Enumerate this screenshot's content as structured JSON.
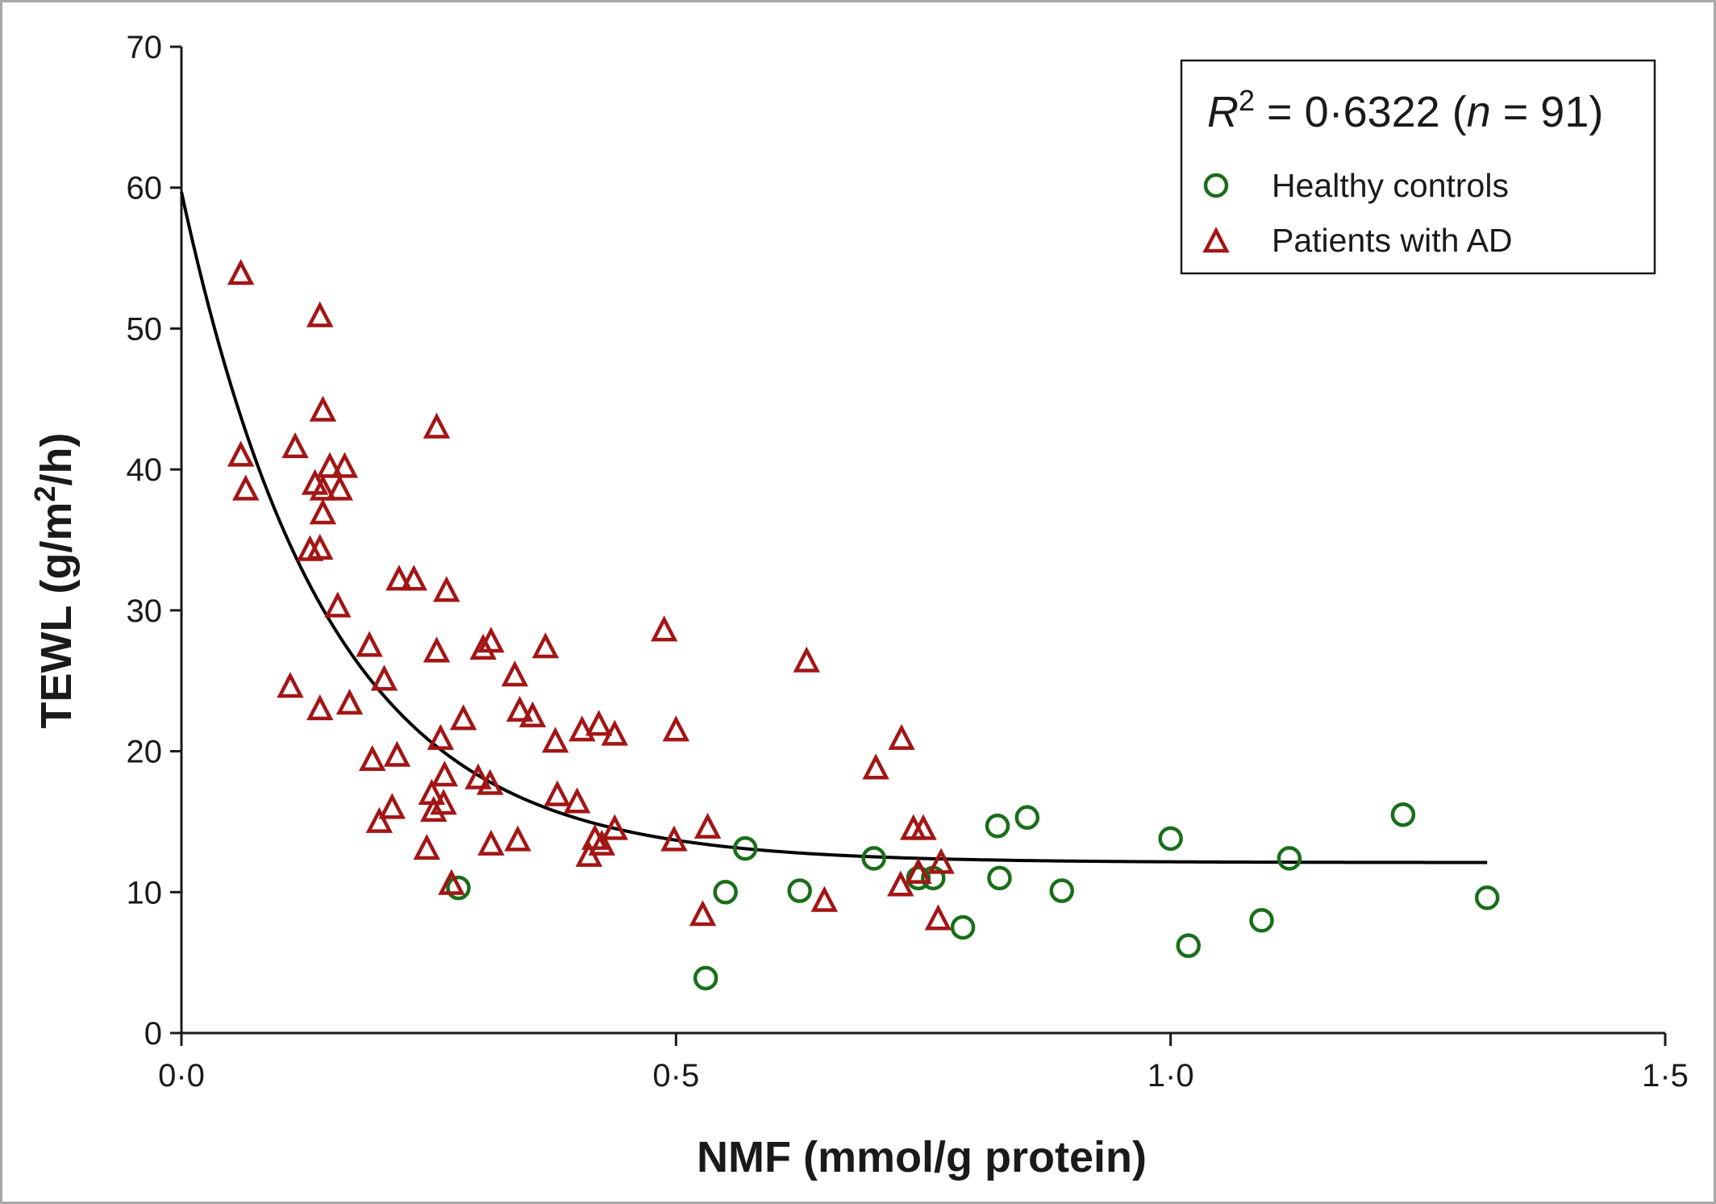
{
  "chart_data": {
    "type": "scatter",
    "xlabel": "NMF (mmol/g protein)",
    "ylabel_parts": {
      "before": "TEWL (g/m",
      "sup": "2",
      "after": "/h)"
    },
    "xlim": [
      0,
      1.5
    ],
    "ylim": [
      0,
      70
    ],
    "x_ticks": [
      0,
      0.5,
      1.0,
      1.5
    ],
    "x_tick_labels": [
      "0·0",
      "0·5",
      "1·0",
      "1·5"
    ],
    "y_ticks": [
      0,
      10,
      20,
      30,
      40,
      50,
      60,
      70
    ],
    "y_tick_labels": [
      "0",
      "10",
      "20",
      "30",
      "40",
      "50",
      "60",
      "70"
    ],
    "annotation": {
      "r": "R",
      "sup": "2",
      "mid": " = 0·6322 (",
      "n": "n",
      "tail": " = 91)"
    },
    "legend_position": "top-right",
    "grid": false,
    "fit_curve": {
      "x_end": 1.32,
      "y0": 59.7,
      "asymptote": 12.1,
      "k": 6.8,
      "color": "#000000"
    },
    "series": [
      {
        "name": "Healthy controls",
        "marker": "circle",
        "color": "#1a6e1a",
        "points": [
          [
            0.28,
            10.3
          ],
          [
            0.53,
            3.9
          ],
          [
            0.55,
            10.0
          ],
          [
            0.57,
            13.1
          ],
          [
            0.625,
            10.1
          ],
          [
            0.7,
            12.4
          ],
          [
            0.745,
            11.0
          ],
          [
            0.76,
            11.0
          ],
          [
            0.79,
            7.5
          ],
          [
            0.825,
            14.7
          ],
          [
            0.827,
            11.0
          ],
          [
            0.855,
            15.3
          ],
          [
            0.89,
            10.1
          ],
          [
            1.0,
            13.8
          ],
          [
            1.018,
            6.2
          ],
          [
            1.092,
            8.0
          ],
          [
            1.12,
            12.4
          ],
          [
            1.235,
            15.5
          ],
          [
            1.32,
            9.6
          ]
        ]
      },
      {
        "name": "Patients with AD",
        "marker": "triangle",
        "color": "#a31515",
        "points": [
          [
            0.06,
            53.8
          ],
          [
            0.06,
            40.9
          ],
          [
            0.065,
            38.5
          ],
          [
            0.11,
            24.5
          ],
          [
            0.115,
            41.5
          ],
          [
            0.13,
            34.2
          ],
          [
            0.135,
            38.9
          ],
          [
            0.14,
            34.3
          ],
          [
            0.14,
            22.9
          ],
          [
            0.14,
            50.8
          ],
          [
            0.143,
            44.1
          ],
          [
            0.143,
            38.5
          ],
          [
            0.143,
            36.8
          ],
          [
            0.15,
            40.1
          ],
          [
            0.158,
            30.2
          ],
          [
            0.16,
            38.5
          ],
          [
            0.165,
            40.1
          ],
          [
            0.17,
            23.3
          ],
          [
            0.19,
            27.4
          ],
          [
            0.193,
            19.3
          ],
          [
            0.2,
            14.9
          ],
          [
            0.205,
            25.0
          ],
          [
            0.213,
            15.9
          ],
          [
            0.218,
            19.6
          ],
          [
            0.22,
            32.1
          ],
          [
            0.235,
            32.1
          ],
          [
            0.248,
            13.0
          ],
          [
            0.253,
            16.9
          ],
          [
            0.255,
            15.7
          ],
          [
            0.258,
            27.0
          ],
          [
            0.258,
            42.9
          ],
          [
            0.262,
            20.8
          ],
          [
            0.265,
            16.2
          ],
          [
            0.266,
            18.2
          ],
          [
            0.268,
            31.3
          ],
          [
            0.273,
            10.5
          ],
          [
            0.285,
            22.2
          ],
          [
            0.3,
            18.0
          ],
          [
            0.305,
            27.2
          ],
          [
            0.312,
            17.6
          ],
          [
            0.313,
            13.3
          ],
          [
            0.313,
            27.7
          ],
          [
            0.337,
            25.3
          ],
          [
            0.34,
            13.6
          ],
          [
            0.342,
            22.8
          ],
          [
            0.355,
            22.4
          ],
          [
            0.368,
            27.3
          ],
          [
            0.378,
            20.6
          ],
          [
            0.38,
            16.8
          ],
          [
            0.4,
            16.3
          ],
          [
            0.405,
            21.4
          ],
          [
            0.412,
            12.5
          ],
          [
            0.418,
            13.7
          ],
          [
            0.422,
            21.8
          ],
          [
            0.425,
            13.3
          ],
          [
            0.438,
            14.4
          ],
          [
            0.438,
            21.1
          ],
          [
            0.488,
            28.5
          ],
          [
            0.498,
            13.6
          ],
          [
            0.5,
            21.4
          ],
          [
            0.527,
            8.3
          ],
          [
            0.532,
            14.5
          ],
          [
            0.632,
            26.3
          ],
          [
            0.65,
            9.3
          ],
          [
            0.702,
            18.7
          ],
          [
            0.727,
            10.4
          ],
          [
            0.728,
            20.8
          ],
          [
            0.74,
            14.4
          ],
          [
            0.745,
            11.3
          ],
          [
            0.75,
            14.4
          ],
          [
            0.765,
            8.0
          ],
          [
            0.768,
            12.0
          ]
        ]
      }
    ]
  }
}
